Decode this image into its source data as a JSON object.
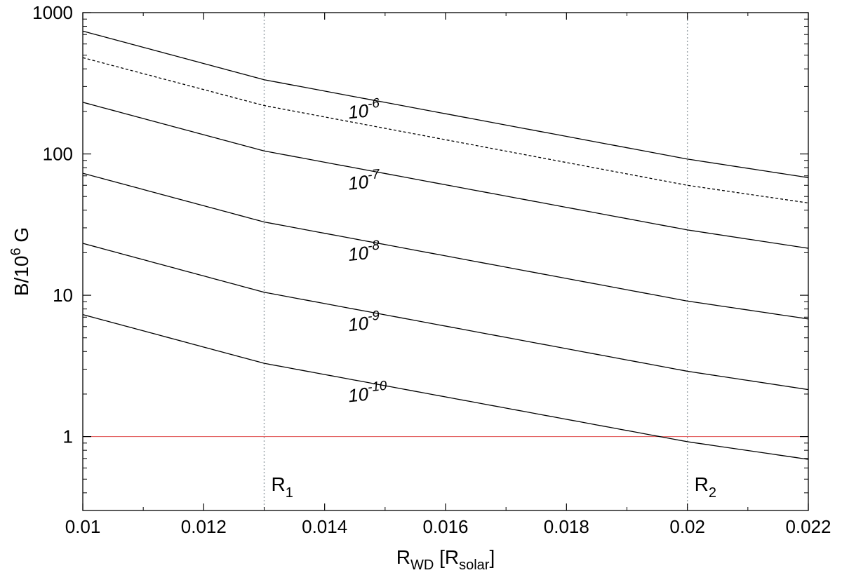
{
  "chart_data": {
    "type": "line",
    "title": "",
    "xlabel": {
      "main": "R",
      "sub": "WD",
      "rest": " [R",
      "sub2": "solar",
      "end": "]"
    },
    "ylabel": {
      "main": "B/10",
      "sup": "6",
      "rest": " G"
    },
    "xlim": [
      0.01,
      0.022
    ],
    "ylim": [
      0.3,
      1000
    ],
    "y_scale": "log",
    "grid": false,
    "x_ticks": [
      "0.01",
      "0.012",
      "0.014",
      "0.016",
      "0.018",
      "0.02",
      "0.022"
    ],
    "x_tick_values": [
      0.01,
      0.012,
      0.014,
      0.016,
      0.018,
      0.02,
      0.022
    ],
    "y_ticks": [
      "1",
      "10",
      "100",
      "1000"
    ],
    "y_tick_values": [
      1,
      10,
      100,
      1000
    ],
    "x": [
      0.01,
      0.013,
      0.02,
      0.022
    ],
    "series": [
      {
        "label_base": "10",
        "label_exp": "-6",
        "style": "solid",
        "color": "#000000",
        "values": [
          740,
          335,
          92,
          68
        ]
      },
      {
        "style": "dashed",
        "color": "#000000",
        "values": [
          480,
          220,
          60,
          45
        ]
      },
      {
        "label_base": "10",
        "label_exp": "-7",
        "style": "solid",
        "color": "#000000",
        "values": [
          232,
          105,
          29,
          21.5
        ]
      },
      {
        "label_base": "10",
        "label_exp": "-8",
        "style": "solid",
        "color": "#000000",
        "values": [
          73,
          33,
          9.1,
          6.8
        ]
      },
      {
        "label_base": "10",
        "label_exp": "-9",
        "style": "solid",
        "color": "#000000",
        "values": [
          23.3,
          10.5,
          2.9,
          2.15
        ]
      },
      {
        "label_base": "10",
        "label_exp": "-10",
        "style": "solid",
        "color": "#000000",
        "values": [
          7.3,
          3.3,
          0.92,
          0.69
        ]
      }
    ],
    "label_x": 0.0144,
    "hline": {
      "y": 1,
      "color": "#e05050"
    },
    "vlines": [
      {
        "x": 0.013,
        "label_main": "R",
        "label_sub": "1"
      },
      {
        "x": 0.02,
        "label_main": "R",
        "label_sub": "2"
      }
    ],
    "vline_color": "#9aa3a8"
  }
}
